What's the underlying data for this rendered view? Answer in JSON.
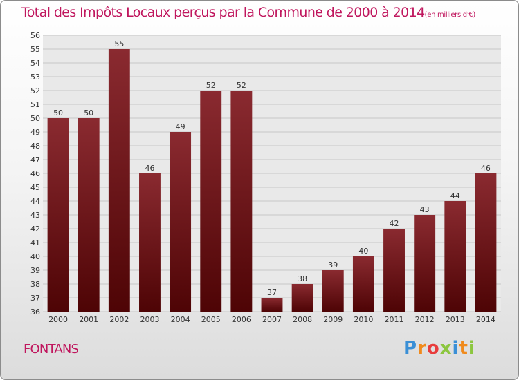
{
  "title": {
    "main": "Total des Impôts Locaux perçus par la Commune de 2000 à 2014",
    "unit": "(en milliers d'€)"
  },
  "commune": "FONTANS",
  "logo": {
    "text": "Proxiti",
    "letter_colors": [
      "#3a8fd6",
      "#f08a1c",
      "#e83c3c",
      "#8cc63f",
      "#3a8fd6",
      "#f08a1c",
      "#8cc63f"
    ]
  },
  "chart_data": {
    "type": "bar",
    "title": "Total des Impôts Locaux perçus par la Commune de 2000 à 2014",
    "subtitle": "(en milliers d'€)",
    "xlabel": "",
    "ylabel": "",
    "categories": [
      "2000",
      "2001",
      "2002",
      "2003",
      "2004",
      "2005",
      "2006",
      "2007",
      "2008",
      "2009",
      "2010",
      "2011",
      "2012",
      "2013",
      "2014"
    ],
    "values": [
      50,
      50,
      55,
      46,
      49,
      52,
      52,
      37,
      38,
      39,
      40,
      42,
      43,
      44,
      46
    ],
    "ylim": [
      36,
      56
    ],
    "yticks": [
      36,
      37,
      38,
      39,
      40,
      41,
      42,
      43,
      44,
      45,
      46,
      47,
      48,
      49,
      50,
      51,
      52,
      53,
      54,
      55,
      56
    ],
    "grid": true,
    "bar_color": "#7a1a1e"
  }
}
